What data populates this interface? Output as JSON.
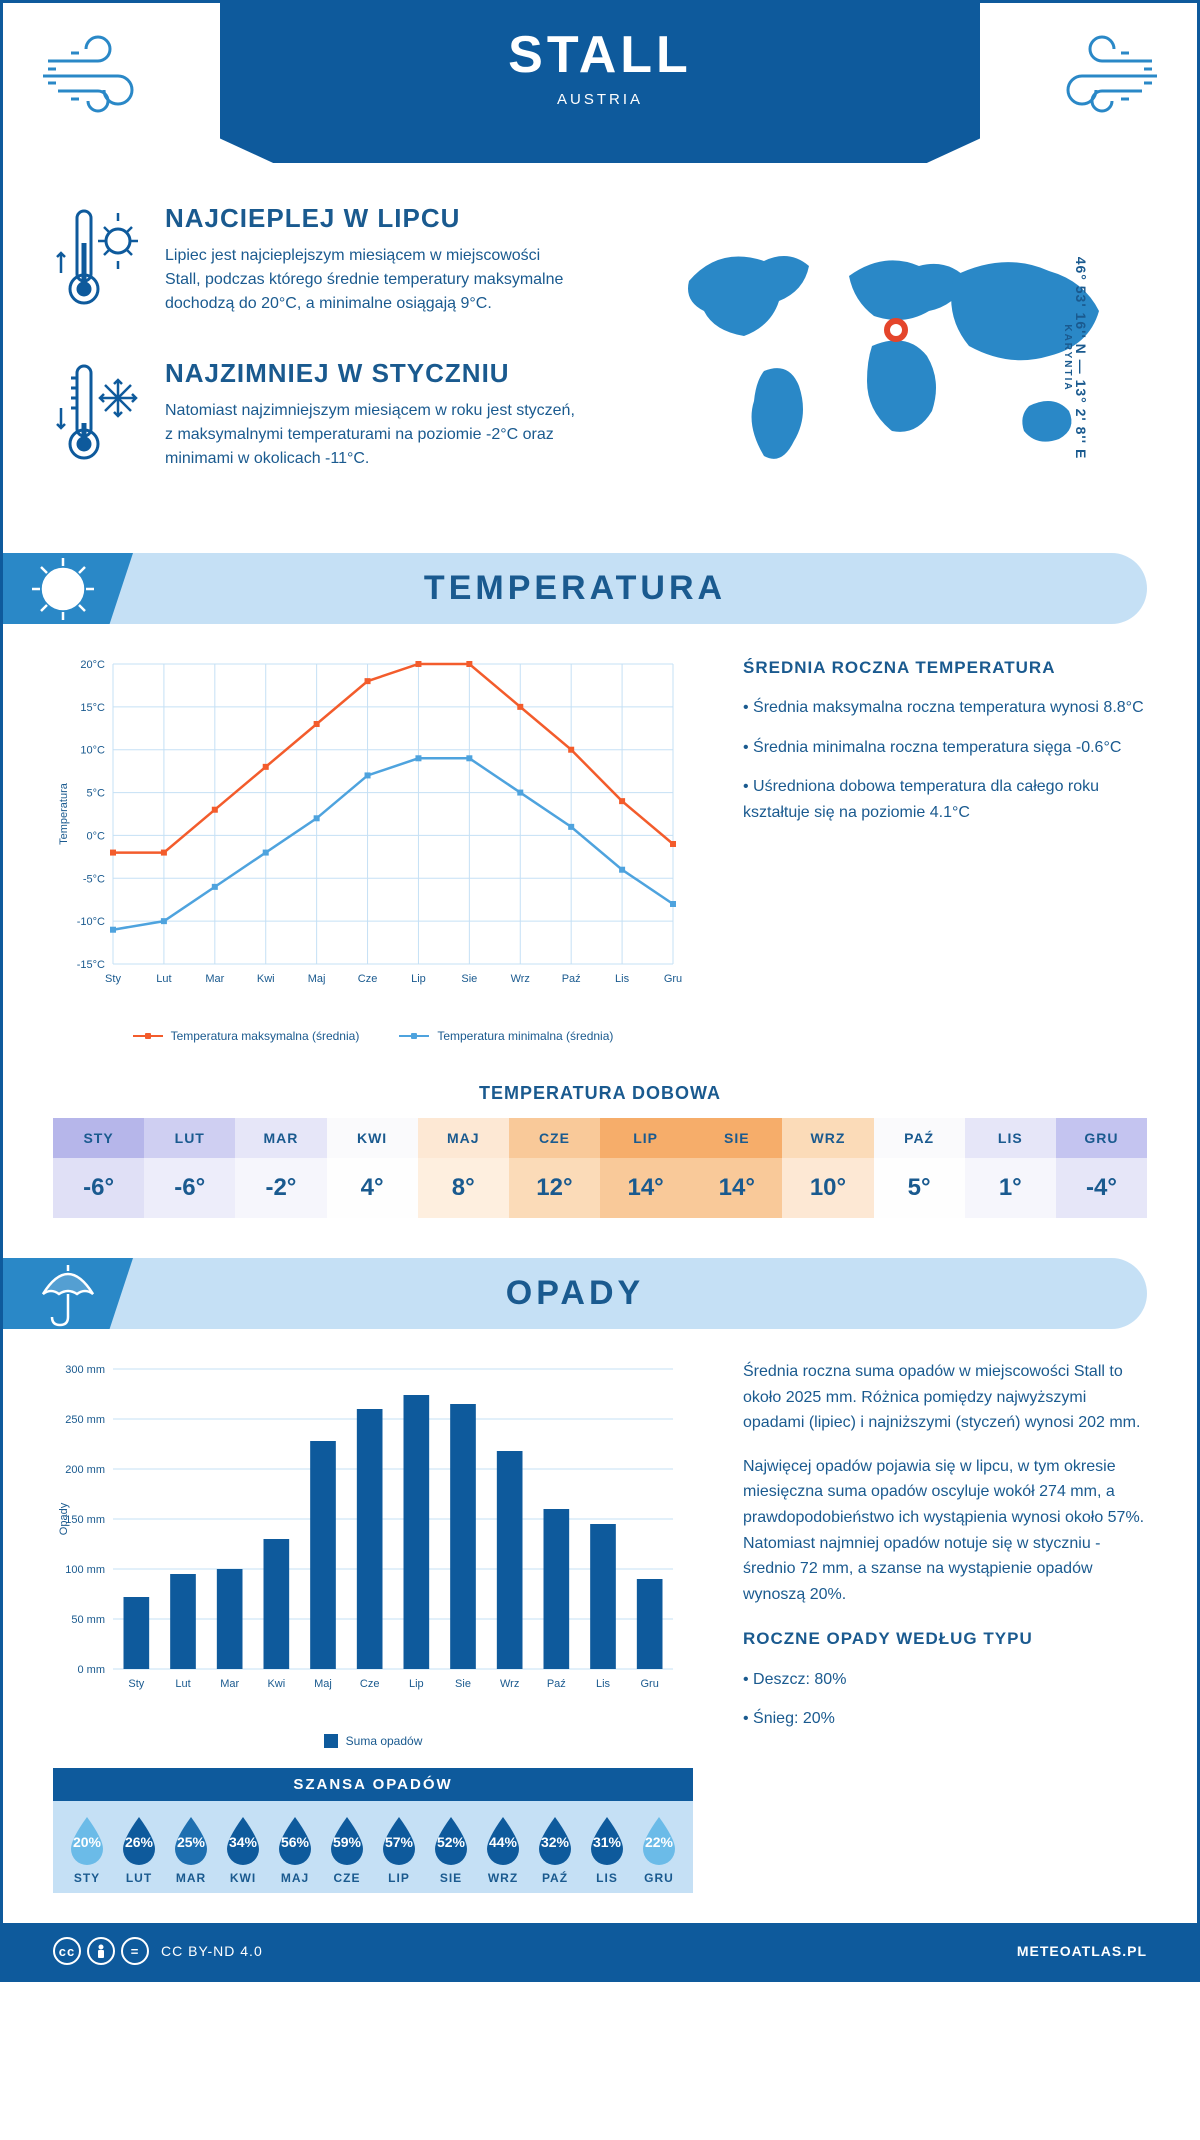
{
  "header": {
    "city": "STALL",
    "country": "AUSTRIA"
  },
  "coords": {
    "lat": "46° 53' 16'' N",
    "lon": "13° 2' 8'' E",
    "region": "KARYNTIA"
  },
  "intro": {
    "hot": {
      "title": "NAJCIEPLEJ W LIPCU",
      "text": "Lipiec jest najcieplejszym miesiącem w miejscowości Stall, podczas którego średnie temperatury maksymalne dochodzą do 20°C, a minimalne osiągają 9°C."
    },
    "cold": {
      "title": "NAJZIMNIEJ W STYCZNIU",
      "text": "Natomiast najzimniejszym miesiącem w roku jest styczeń, z maksymalnymi temperaturami na poziomie -2°C oraz minimami w okolicach -11°C."
    }
  },
  "temperature": {
    "section_title": "TEMPERATURA",
    "chart": {
      "type": "line",
      "months": [
        "Sty",
        "Lut",
        "Mar",
        "Kwi",
        "Maj",
        "Cze",
        "Lip",
        "Sie",
        "Wrz",
        "Paź",
        "Lis",
        "Gru"
      ],
      "max_series": [
        -2,
        -2,
        3,
        8,
        13,
        18,
        20,
        20,
        15,
        10,
        4,
        -1
      ],
      "min_series": [
        -11,
        -10,
        -6,
        -2,
        2,
        7,
        9,
        9,
        5,
        1,
        -4,
        -8
      ],
      "max_color": "#f35c2c",
      "min_color": "#4ea3de",
      "ylim": [
        -15,
        20
      ],
      "ytick_step": 5,
      "y_label": "Temperatura",
      "grid_color": "#c5e0f5",
      "legend_max": "Temperatura maksymalna (średnia)",
      "legend_min": "Temperatura minimalna (średnia)"
    },
    "side": {
      "title": "ŚREDNIA ROCZNA TEMPERATURA",
      "lines": [
        "Średnia maksymalna roczna temperatura wynosi 8.8°C",
        "Średnia minimalna roczna temperatura sięga -0.6°C",
        "Uśredniona dobowa temperatura dla całego roku kształtuje się na poziomie 4.1°C"
      ]
    },
    "daily": {
      "title": "TEMPERATURA DOBOWA",
      "months": [
        "STY",
        "LUT",
        "MAR",
        "KWI",
        "MAJ",
        "CZE",
        "LIP",
        "SIE",
        "WRZ",
        "PAŹ",
        "LIS",
        "GRU"
      ],
      "values": [
        "-6°",
        "-6°",
        "-2°",
        "4°",
        "8°",
        "12°",
        "14°",
        "14°",
        "10°",
        "5°",
        "1°",
        "-4°"
      ],
      "head_colors": [
        "#b6b6ea",
        "#cfcff2",
        "#e6e6f8",
        "#fafafc",
        "#fde8d4",
        "#f9c999",
        "#f6ad6a",
        "#f6ad6a",
        "#fbdbb8",
        "#fafafc",
        "#e6e6f8",
        "#c4c4f0"
      ],
      "val_colors": [
        "#e0e0f6",
        "#ededfa",
        "#f6f6fc",
        "#fefefe",
        "#feefdf",
        "#fbdbb8",
        "#f9c999",
        "#f9c999",
        "#fde8d4",
        "#fefefe",
        "#f6f6fc",
        "#e6e6f8"
      ]
    }
  },
  "precipitation": {
    "section_title": "OPADY",
    "chart": {
      "type": "bar",
      "months": [
        "Sty",
        "Lut",
        "Mar",
        "Kwi",
        "Maj",
        "Cze",
        "Lip",
        "Sie",
        "Wrz",
        "Paź",
        "Lis",
        "Gru"
      ],
      "values": [
        72,
        95,
        100,
        130,
        228,
        260,
        274,
        265,
        218,
        160,
        145,
        90
      ],
      "bar_color": "#0e5a9c",
      "ylim": [
        0,
        300
      ],
      "ytick_step": 50,
      "y_label": "Opady",
      "grid_color": "#c5e0f5",
      "legend": "Suma opadów"
    },
    "side": {
      "p1": "Średnia roczna suma opadów w miejscowości Stall to około 2025 mm. Różnica pomiędzy najwyższymi opadami (lipiec) i najniższymi (styczeń) wynosi 202 mm.",
      "p2": "Najwięcej opadów pojawia się w lipcu, w tym okresie miesięczna suma opadów oscyluje wokół 274 mm, a prawdopodobieństwo ich wystąpienia wynosi około 57%. Natomiast najmniej opadów notuje się w styczniu - średnio 72 mm, a szanse na wystąpienie opadów wynoszą 20%.",
      "type_title": "ROCZNE OPADY WEDŁUG TYPU",
      "types": [
        "Deszcz: 80%",
        "Śnieg: 20%"
      ]
    },
    "chance": {
      "title": "SZANSA OPADÓW",
      "months": [
        "STY",
        "LUT",
        "MAR",
        "KWI",
        "MAJ",
        "CZE",
        "LIP",
        "SIE",
        "WRZ",
        "PAŹ",
        "LIS",
        "GRU"
      ],
      "values": [
        "20%",
        "26%",
        "25%",
        "34%",
        "56%",
        "59%",
        "57%",
        "52%",
        "44%",
        "32%",
        "31%",
        "22%"
      ],
      "colors": [
        "#6bbbe8",
        "#0e5a9c",
        "#1e6fb0",
        "#0e5a9c",
        "#0e5a9c",
        "#0e5a9c",
        "#0e5a9c",
        "#0e5a9c",
        "#0e5a9c",
        "#0e5a9c",
        "#0e5a9c",
        "#6bbbe8"
      ]
    }
  },
  "footer": {
    "license": "CC BY-ND 4.0",
    "site": "METEOATLAS.PL"
  }
}
